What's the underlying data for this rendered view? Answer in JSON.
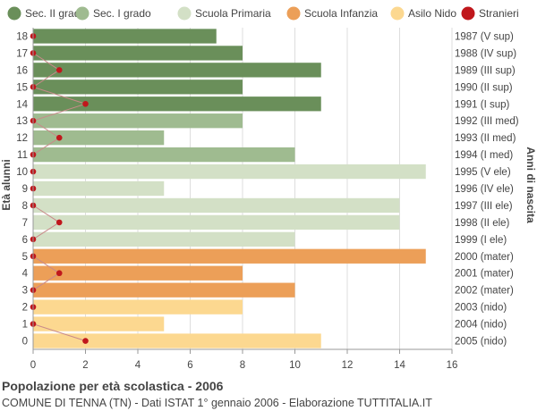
{
  "footer": {
    "title": "Popolazione per età scolastica - 2006",
    "subtitle": "COMUNE DI TENNA (TN) - Dati ISTAT 1° gennaio 2006 - Elaborazione TUTTITALIA.IT"
  },
  "chart_data": {
    "type": "bar",
    "orientation": "horizontal",
    "ylabel": "Età alunni",
    "ylabel_right": "Anni di nascita",
    "xlim": [
      0,
      16
    ],
    "xticks": [
      0,
      2,
      4,
      6,
      8,
      10,
      12,
      14,
      16
    ],
    "grid": true,
    "legend_position": "top",
    "legend": [
      {
        "name": "Sec. II grado",
        "color": "#6a8f5a"
      },
      {
        "name": "Sec. I grado",
        "color": "#9fbb90"
      },
      {
        "name": "Scuola Primaria",
        "color": "#d3e0c6"
      },
      {
        "name": "Scuola Infanzia",
        "color": "#ec9f58"
      },
      {
        "name": "Asilo Nido",
        "color": "#fcd890"
      },
      {
        "name": "Stranieri",
        "color": "#c0171c"
      }
    ],
    "rows": [
      {
        "age": "18",
        "birth": "1987 (V sup)",
        "value": 7,
        "group": "Sec. II grado",
        "stranieri": 0
      },
      {
        "age": "17",
        "birth": "1988 (IV sup)",
        "value": 8,
        "group": "Sec. II grado",
        "stranieri": 0
      },
      {
        "age": "16",
        "birth": "1989 (III sup)",
        "value": 11,
        "group": "Sec. II grado",
        "stranieri": 1
      },
      {
        "age": "15",
        "birth": "1990 (II sup)",
        "value": 8,
        "group": "Sec. II grado",
        "stranieri": 0
      },
      {
        "age": "14",
        "birth": "1991 (I sup)",
        "value": 11,
        "group": "Sec. II grado",
        "stranieri": 2
      },
      {
        "age": "13",
        "birth": "1992 (III med)",
        "value": 8,
        "group": "Sec. I grado",
        "stranieri": 0
      },
      {
        "age": "12",
        "birth": "1993 (II med)",
        "value": 5,
        "group": "Sec. I grado",
        "stranieri": 1
      },
      {
        "age": "11",
        "birth": "1994 (I med)",
        "value": 10,
        "group": "Sec. I grado",
        "stranieri": 0
      },
      {
        "age": "10",
        "birth": "1995 (V ele)",
        "value": 15,
        "group": "Scuola Primaria",
        "stranieri": 0
      },
      {
        "age": "9",
        "birth": "1996 (IV ele)",
        "value": 5,
        "group": "Scuola Primaria",
        "stranieri": 0
      },
      {
        "age": "8",
        "birth": "1997 (III ele)",
        "value": 14,
        "group": "Scuola Primaria",
        "stranieri": 0
      },
      {
        "age": "7",
        "birth": "1998 (II ele)",
        "value": 14,
        "group": "Scuola Primaria",
        "stranieri": 1
      },
      {
        "age": "6",
        "birth": "1999 (I ele)",
        "value": 10,
        "group": "Scuola Primaria",
        "stranieri": 0
      },
      {
        "age": "5",
        "birth": "2000 (mater)",
        "value": 15,
        "group": "Scuola Infanzia",
        "stranieri": 0
      },
      {
        "age": "4",
        "birth": "2001 (mater)",
        "value": 8,
        "group": "Scuola Infanzia",
        "stranieri": 1
      },
      {
        "age": "3",
        "birth": "2002 (mater)",
        "value": 10,
        "group": "Scuola Infanzia",
        "stranieri": 0
      },
      {
        "age": "2",
        "birth": "2003 (nido)",
        "value": 8,
        "group": "Asilo Nido",
        "stranieri": 0
      },
      {
        "age": "1",
        "birth": "2004 (nido)",
        "value": 5,
        "group": "Asilo Nido",
        "stranieri": 0
      },
      {
        "age": "0",
        "birth": "2005 (nido)",
        "value": 11,
        "group": "Asilo Nido",
        "stranieri": 2
      }
    ]
  }
}
